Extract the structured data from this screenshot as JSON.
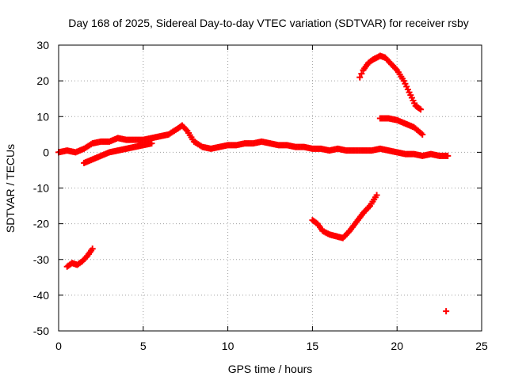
{
  "chart_data": {
    "type": "scatter",
    "title": "Day 168 of 2025, Sidereal Day-to-day VTEC variation (SDTVAR) for receiver rsby",
    "xlabel": "GPS time / hours",
    "ylabel": "SDTVAR / TECUs",
    "xlim": [
      0,
      25
    ],
    "ylim": [
      -50,
      30
    ],
    "xticks": [
      0,
      5,
      10,
      15,
      20,
      25
    ],
    "yticks": [
      -50,
      -40,
      -30,
      -20,
      -10,
      0,
      10,
      20,
      30
    ],
    "grid": true,
    "marker": "+",
    "color": "#ff0000",
    "series": [
      {
        "name": "main-track",
        "x": [
          0.0,
          0.5,
          1.0,
          1.5,
          2.0,
          2.5,
          3.0,
          3.5,
          4.0,
          4.5,
          5.0,
          5.5,
          6.0,
          6.5,
          7.0,
          7.3,
          7.6,
          8.0,
          8.5,
          9.0,
          9.5,
          10.0,
          10.5,
          11.0,
          11.5,
          12.0,
          12.5,
          13.0,
          13.5,
          14.0,
          14.5,
          15.0,
          15.5,
          16.0,
          16.5,
          17.0,
          17.5,
          18.0,
          18.5,
          19.0,
          19.5,
          20.0,
          20.5,
          21.0,
          21.5,
          22.0,
          22.5,
          23.0
        ],
        "y": [
          0.0,
          0.5,
          0.0,
          1.0,
          2.5,
          3.0,
          3.0,
          4.0,
          3.5,
          3.5,
          3.5,
          4.0,
          4.5,
          5.0,
          6.5,
          7.5,
          6.0,
          3.0,
          1.5,
          1.0,
          1.5,
          2.0,
          2.0,
          2.5,
          2.5,
          3.0,
          2.5,
          2.0,
          2.0,
          1.5,
          1.5,
          1.0,
          1.0,
          0.5,
          1.0,
          0.5,
          0.5,
          0.5,
          0.5,
          1.0,
          0.5,
          0.0,
          -0.5,
          -0.5,
          -1.0,
          -0.5,
          -1.0,
          -1.0
        ]
      },
      {
        "name": "lower-rising-track",
        "x": [
          1.5,
          2.0,
          2.5,
          3.0,
          3.5,
          4.0,
          4.5,
          5.0,
          5.5
        ],
        "y": [
          -3.0,
          -2.0,
          -1.0,
          0.0,
          0.5,
          1.0,
          1.5,
          2.0,
          2.5
        ]
      },
      {
        "name": "late-track",
        "x": [
          19.0,
          19.5,
          20.0,
          20.5,
          21.0,
          21.5
        ],
        "y": [
          9.5,
          9.5,
          9.0,
          8.0,
          7.0,
          5.0
        ]
      },
      {
        "name": "upper-arc",
        "x": [
          17.8,
          18.0,
          18.3,
          18.6,
          19.0,
          19.3,
          19.6,
          20.0,
          20.4,
          20.8,
          21.1,
          21.4
        ],
        "y": [
          21.0,
          23.0,
          25.0,
          26.0,
          27.0,
          26.5,
          25.0,
          23.0,
          20.0,
          16.0,
          13.0,
          12.0
        ]
      },
      {
        "name": "lower-arc",
        "x": [
          15.0,
          15.3,
          15.6,
          16.0,
          16.4,
          16.8,
          17.2,
          17.6,
          18.0,
          18.4,
          18.8
        ],
        "y": [
          -19.0,
          -20.0,
          -22.0,
          -23.0,
          -23.5,
          -24.0,
          -22.0,
          -19.5,
          -17.0,
          -15.0,
          -12.0
        ]
      },
      {
        "name": "morning-cluster",
        "x": [
          0.5,
          0.8,
          1.1,
          1.4,
          1.7,
          2.0
        ],
        "y": [
          -32.0,
          -31.0,
          -31.5,
          -30.5,
          -29.0,
          -27.0
        ]
      },
      {
        "name": "outlier",
        "x": [
          22.9
        ],
        "y": [
          -44.5
        ]
      }
    ]
  }
}
